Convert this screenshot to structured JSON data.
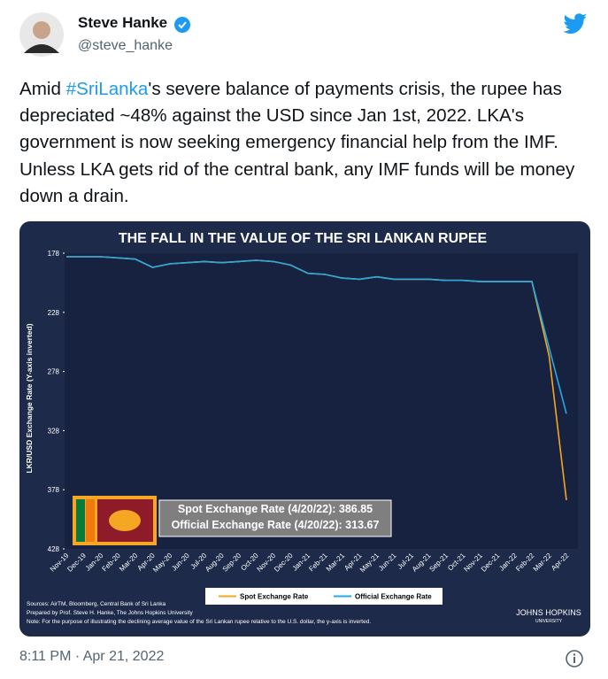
{
  "header": {
    "name": "Steve Hanke",
    "handle": "@steve_hanke"
  },
  "tweet": {
    "text": [
      "Amid ",
      "#SriLanka",
      "'s severe balance of payments crisis, the rupee has depreciated ~48% against the USD since Jan 1st, 2022. LKA's government is now seeking emergency financial help from the IMF. Unless LKA gets rid of the central bank, any IMF funds will be money down a drain."
    ]
  },
  "chart_data": {
    "type": "line",
    "title": "THE FALL IN THE VALUE OF THE SRI LANKAN RUPEE",
    "y_label": "LKR/USD Exchange Rate (Y-axis inverted)",
    "categories": [
      "Nov-19",
      "Dec-19",
      "Jan-20",
      "Feb-20",
      "Mar-20",
      "Apr-20",
      "May-20",
      "Jun-20",
      "Jul-20",
      "Aug-20",
      "Sep-20",
      "Oct-20",
      "Nov-20",
      "Dec-20",
      "Jan-21",
      "Feb-21",
      "Mar-21",
      "Apr-21",
      "May-21",
      "Jun-21",
      "Jul-21",
      "Aug-21",
      "Sep-21",
      "Oct-21",
      "Nov-21",
      "Dec-21",
      "Jan-22",
      "Feb-22",
      "Mar-22",
      "Apr-22"
    ],
    "series": [
      {
        "name": "Spot Exchange Rate",
        "color": "#f5a623",
        "values": [
          181,
          181,
          181,
          182,
          183,
          190,
          187,
          186,
          185,
          186,
          185,
          184,
          185,
          188,
          195,
          196,
          199,
          200,
          198,
          200,
          200,
          200,
          201,
          201,
          202,
          202,
          202,
          202,
          265,
          386.85
        ]
      },
      {
        "name": "Official Exchange Rate",
        "color": "#29a8e0",
        "values": [
          181,
          181,
          181,
          182,
          183,
          190,
          187,
          186,
          185,
          186,
          185,
          184,
          185,
          188,
          195,
          196,
          199,
          200,
          198,
          200,
          200,
          200,
          201,
          201,
          202,
          202,
          202,
          202,
          258,
          313.67
        ]
      }
    ],
    "ylim": [
      178,
      428
    ],
    "yticks": [
      178,
      228,
      278,
      328,
      378,
      428
    ],
    "inverted": true,
    "annotations": [
      "Spot Exchange Rate (4/20/22): 386.85",
      "Official Exchange Rate (4/20/22): 313.67"
    ],
    "sources": [
      "Sources: AirTM, Bloomberg, Central Bank of Sri Lanka",
      "Prepared by Prof. Steve H. Hanke, The Johns Hopkins University",
      "Note: For the purpose of illustrating the declining average value of the Sri Lankan rupee relative to the U.S. dollar, the y-axis is inverted."
    ],
    "logo": [
      "JOHNS HOPKINS",
      "UNIVERSITY"
    ]
  },
  "footer": {
    "timestamp": "8:11 PM · Apr 21, 2022"
  }
}
